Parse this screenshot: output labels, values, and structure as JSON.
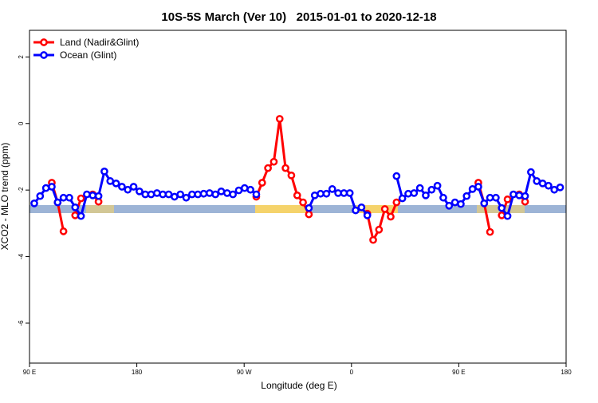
{
  "chart_data": {
    "type": "line",
    "title": "10S-5S March (Ver 10)   2015-01-01 to 2020-12-18",
    "xlabel": "Longitude (deg E)",
    "ylabel": "XCO2 - MLO trend (ppm)",
    "xlim": [
      90,
      540
    ],
    "ylim": [
      -7.2,
      2.8
    ],
    "xticks": [
      {
        "value": 90,
        "label": "90 E"
      },
      180,
      {
        "value": 270,
        "label": "90 W"
      },
      {
        "value": 360,
        "label": "0"
      },
      {
        "value": 450,
        "label": "90 E"
      },
      {
        "value": 540,
        "label": "180"
      }
    ],
    "yticks": [
      2,
      0,
      -2,
      -4,
      -6
    ],
    "legend": "top-left",
    "x": [
      94,
      98.9,
      103.8,
      108.7,
      113.6,
      118.5,
      123.4,
      128.3,
      133.2,
      138.1,
      143,
      147.9,
      152.8,
      157.7,
      162.6,
      167.5,
      172.4,
      177.3,
      182.2,
      187.1,
      192,
      196.9,
      201.8,
      206.7,
      211.6,
      216.5,
      221.4,
      226.3,
      231.2,
      236.1,
      241,
      245.9,
      250.8,
      255.7,
      260.6,
      265.5,
      270.4,
      275.3,
      280.2,
      285.1,
      290,
      294.9,
      299.8,
      304.7,
      309.6,
      314.5,
      319.4,
      324.3,
      329.2,
      334.1,
      339,
      343.9,
      348.8,
      353.7,
      358.6,
      363.5,
      368.4,
      373.3,
      378.2,
      383.1,
      388,
      392.9,
      397.8,
      402.7,
      407.6,
      412.5,
      417.4,
      422.3,
      427.2,
      432.1,
      437,
      441.9,
      446.8,
      451.7,
      456.6,
      461.5,
      466.4,
      471.3,
      476.2,
      481.1,
      486,
      490.9,
      495.8,
      500.7,
      505.6,
      510.5,
      515.4,
      520.3,
      525.2,
      530.1,
      535
    ],
    "series": [
      {
        "name": "Land (Nadir&Glint)",
        "color": "#ff0000",
        "values": [
          null,
          null,
          null,
          -1.78,
          -2.37,
          -3.24,
          null,
          -2.76,
          -2.25,
          null,
          -2.13,
          -2.35,
          null,
          null,
          null,
          null,
          null,
          null,
          null,
          null,
          null,
          null,
          null,
          null,
          null,
          null,
          null,
          null,
          null,
          null,
          null,
          null,
          null,
          null,
          null,
          null,
          null,
          null,
          -2.2,
          -1.78,
          -1.34,
          -1.15,
          0.14,
          -1.34,
          -1.56,
          -2.16,
          -2.37,
          -2.73,
          null,
          null,
          null,
          null,
          null,
          null,
          null,
          null,
          null,
          -2.71,
          -3.5,
          -3.19,
          -2.57,
          -2.8,
          -2.37,
          null,
          null,
          null,
          null,
          null,
          null,
          null,
          null,
          null,
          null,
          null,
          null,
          null,
          -1.78,
          -2.4,
          -3.26,
          null,
          -2.76,
          -2.28,
          null,
          -2.13,
          -2.35,
          null,
          null,
          null,
          null,
          null,
          null
        ]
      },
      {
        "name": "Ocean (Glint)",
        "color": "#0000ff",
        "values": [
          -2.4,
          -2.18,
          -1.94,
          -1.9,
          -2.37,
          -2.23,
          -2.23,
          -2.52,
          -2.78,
          -2.13,
          -2.16,
          -2.18,
          -1.44,
          -1.73,
          -1.8,
          -1.9,
          -1.99,
          -1.9,
          -2.04,
          -2.13,
          -2.13,
          -2.09,
          -2.13,
          -2.13,
          -2.2,
          -2.13,
          -2.23,
          -2.13,
          -2.13,
          -2.11,
          -2.09,
          -2.13,
          -2.04,
          -2.09,
          -2.13,
          -2.01,
          -1.94,
          -1.99,
          -2.13,
          null,
          null,
          null,
          null,
          null,
          null,
          null,
          null,
          -2.54,
          -2.16,
          -2.11,
          -2.11,
          -1.97,
          -2.09,
          -2.09,
          -2.09,
          -2.61,
          -2.52,
          -2.76,
          null,
          null,
          null,
          null,
          -1.58,
          -2.25,
          -2.11,
          -2.09,
          -1.94,
          -2.16,
          -1.99,
          -1.87,
          -2.23,
          -2.47,
          -2.37,
          -2.42,
          -2.18,
          -1.97,
          -1.9,
          -2.4,
          -2.23,
          -2.23,
          -2.54,
          -2.78,
          -2.13,
          -2.16,
          -2.18,
          -1.46,
          -1.73,
          -1.8,
          -1.87,
          -1.99,
          -1.92
        ]
      }
    ]
  }
}
